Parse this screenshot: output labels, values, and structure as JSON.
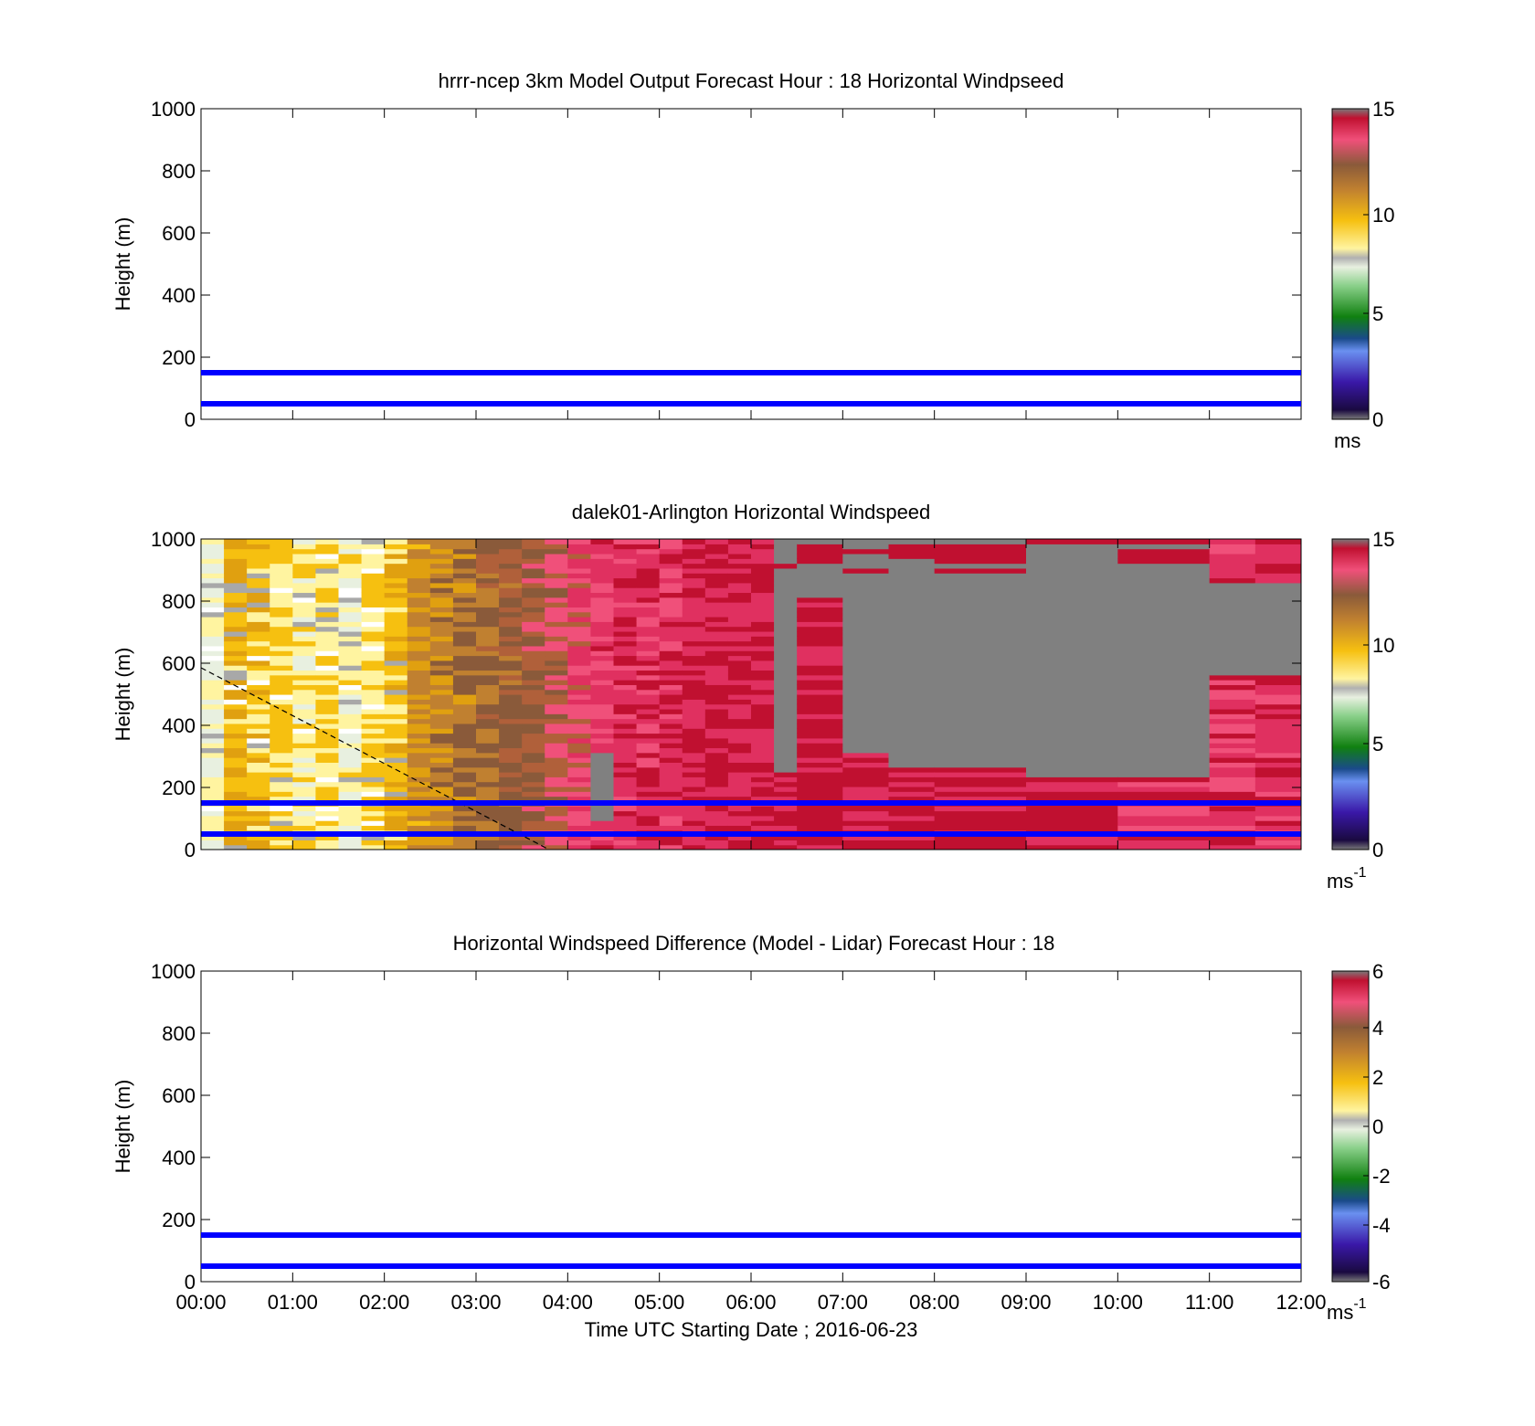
{
  "figure": {
    "xticks": [
      "00:00",
      "01:00",
      "02:00",
      "03:00",
      "04:00",
      "05:00",
      "06:00",
      "07:00",
      "08:00",
      "09:00",
      "10:00",
      "11:00",
      "12:00"
    ],
    "xlabel": "Time UTC  Starting Date ; 2016-06-23",
    "xlim_hours": [
      0,
      12
    ]
  },
  "panels": [
    {
      "id": "model",
      "title": "hrrr-ncep 3km Model Output   Forecast Hour : 18 Horizontal Windpseed",
      "ylabel": "Height (m)",
      "yticks": [
        "0",
        "200",
        "400",
        "600",
        "800",
        "1000"
      ],
      "ylim": [
        0,
        1000
      ],
      "colorbar": {
        "ticks": [
          "0",
          "5",
          "10",
          "15"
        ],
        "range": [
          0,
          15
        ],
        "unit": "ms",
        "unit_sup": ""
      }
    },
    {
      "id": "lidar",
      "title": "dalek01-Arlington  Horizontal Windspeed",
      "ylabel": "Height (m)",
      "yticks": [
        "0",
        "200",
        "400",
        "600",
        "800",
        "1000"
      ],
      "ylim": [
        0,
        1000
      ],
      "colorbar": {
        "ticks": [
          "0",
          "5",
          "10",
          "15"
        ],
        "range": [
          0,
          15
        ],
        "unit": "ms",
        "unit_sup": "-1"
      }
    },
    {
      "id": "diff",
      "title": "Horizontal Windspeed Difference (Model - Lidar) Forecast Hour : 18",
      "ylabel": "Height (m)",
      "yticks": [
        "0",
        "200",
        "400",
        "600",
        "800",
        "1000"
      ],
      "ylim": [
        0,
        1000
      ],
      "colorbar": {
        "ticks": [
          "-6",
          "-4",
          "-2",
          "0",
          "2",
          "4",
          "6"
        ],
        "range": [
          -6,
          6
        ],
        "unit": "ms",
        "unit_sup": "-1"
      }
    }
  ],
  "chart_data": [
    {
      "type": "heatmap",
      "panel": "model",
      "title": "hrrr-ncep 3km Model Output   Forecast Hour : 18 Horizontal Windpseed",
      "ylabel": "Height (m)",
      "ylim": [
        0,
        1000
      ],
      "reference_lines_m": [
        50,
        150
      ],
      "data": "empty"
    },
    {
      "type": "heatmap",
      "panel": "lidar",
      "title": "dalek01-Arlington  Horizontal Windspeed",
      "ylabel": "Height (m)",
      "ylim": [
        0,
        1000
      ],
      "reference_lines_m": [
        50,
        150
      ],
      "dashed_line": {
        "x_hours": [
          0.0,
          3.8
        ],
        "y_m": [
          590,
          0
        ]
      },
      "column_profiles_ms": [
        {
          "t": 0.25,
          "v": 6
        },
        {
          "t": 0.5,
          "v": 8
        },
        {
          "t": 0.75,
          "v": 7.5
        },
        {
          "t": 1.0,
          "v": 7
        },
        {
          "t": 1.25,
          "v": 6.5
        },
        {
          "t": 1.5,
          "v": 7
        },
        {
          "t": 1.75,
          "v": 6
        },
        {
          "t": 2.0,
          "v": 7
        },
        {
          "t": 2.25,
          "v": 7.5
        },
        {
          "t": 2.5,
          "v": 9
        },
        {
          "t": 2.75,
          "v": 9.5
        },
        {
          "t": 3.0,
          "v": 10
        },
        {
          "t": 3.25,
          "v": 10.5
        },
        {
          "t": 3.5,
          "v": 11
        },
        {
          "t": 3.75,
          "v": 11.5
        },
        {
          "t": 4.0,
          "v": 12
        },
        {
          "t": 4.25,
          "v": 13
        },
        {
          "t": 4.5,
          "v": 13.5
        },
        {
          "t": 4.75,
          "v": 14
        },
        {
          "t": 5.0,
          "v": 14
        },
        {
          "t": 5.25,
          "v": 14
        },
        {
          "t": 5.5,
          "v": 14.5
        },
        {
          "t": 5.75,
          "v": 14.5
        },
        {
          "t": 6.0,
          "v": 14.5
        },
        {
          "t": 6.25,
          "v": 14.5
        },
        {
          "t": 6.5,
          "v": 15
        },
        {
          "t": 7.0,
          "v": 15
        },
        {
          "t": 7.5,
          "v": 15
        },
        {
          "t": 8.0,
          "v": 15
        },
        {
          "t": 9.0,
          "v": 15
        },
        {
          "t": 10.0,
          "v": 15
        },
        {
          "t": 11.0,
          "v": 14
        },
        {
          "t": 11.5,
          "v": 14
        },
        {
          "t": 12.0,
          "v": 14
        }
      ],
      "note_missing": "gray = no data"
    },
    {
      "type": "heatmap",
      "panel": "diff",
      "title": "Horizontal Windspeed Difference (Model - Lidar) Forecast Hour : 18",
      "ylabel": "Height (m)",
      "ylim": [
        0,
        1000
      ],
      "reference_lines_m": [
        50,
        150
      ],
      "data": "empty"
    }
  ],
  "colors": {
    "ref_line": "#0000ff",
    "missing": "#808080",
    "colormap": [
      "#505050",
      "#2a0a5a",
      "#3a2ab0",
      "#6a8af0",
      "#2a8a4a",
      "#108010",
      "#7ec07e",
      "#e8e8d0",
      "#ffffff",
      "#f5d028",
      "#e8a010",
      "#b07a30",
      "#8a5a3a",
      "#e84a7a",
      "#c01838",
      "#808080"
    ]
  }
}
